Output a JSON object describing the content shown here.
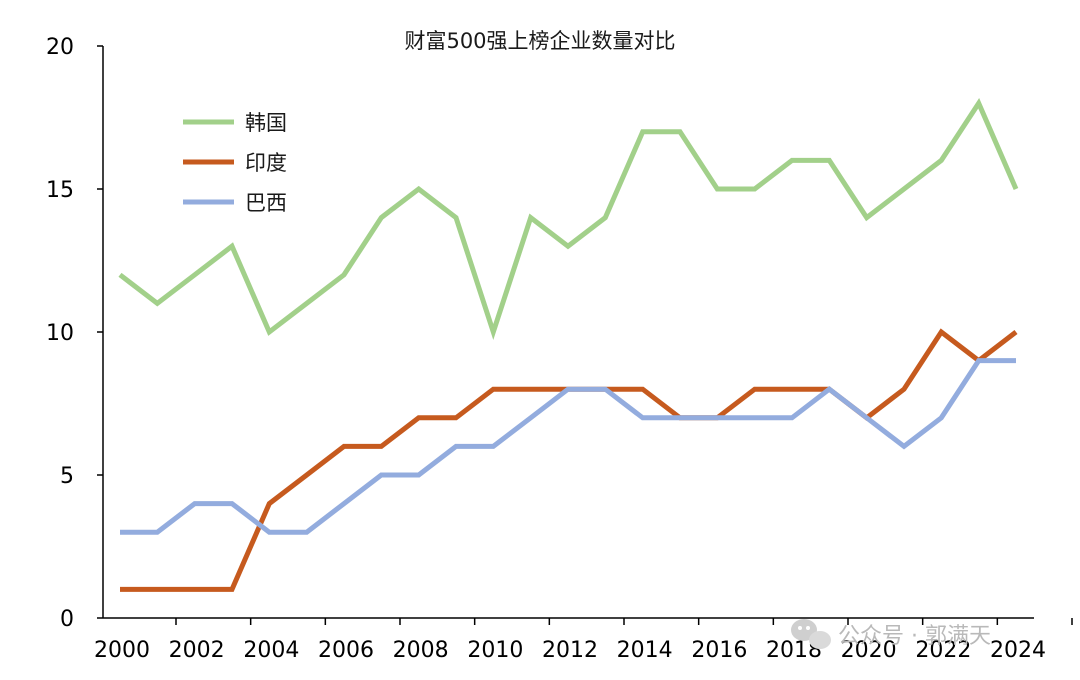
{
  "chart_data": {
    "type": "line",
    "title": "财富500强上榜企业数量对比",
    "xlabel": "",
    "ylabel": "",
    "x": [
      2000,
      2001,
      2002,
      2003,
      2004,
      2005,
      2006,
      2007,
      2008,
      2009,
      2010,
      2011,
      2012,
      2013,
      2014,
      2015,
      2016,
      2017,
      2018,
      2019,
      2020,
      2021,
      2022,
      2023,
      2024
    ],
    "x_tick_labels": [
      "2000",
      "2002",
      "2004",
      "2006",
      "2008",
      "2010",
      "2012",
      "2014",
      "2016",
      "2018",
      "2020",
      "2022",
      "2024"
    ],
    "ylim": [
      0,
      20
    ],
    "y_ticks": [
      0,
      5,
      10,
      15,
      20
    ],
    "grid": false,
    "legend_position": "top-left",
    "series": [
      {
        "name": "韩国",
        "color": "#a2d08a",
        "values": [
          12,
          11,
          12,
          13,
          10,
          11,
          12,
          14,
          15,
          14,
          10,
          14,
          13,
          14,
          17,
          17,
          15,
          15,
          16,
          16,
          14,
          15,
          16,
          18,
          15
        ]
      },
      {
        "name": "印度",
        "color": "#c65a1e",
        "values": [
          1,
          1,
          1,
          1,
          4,
          5,
          6,
          6,
          7,
          7,
          8,
          8,
          8,
          8,
          8,
          7,
          7,
          8,
          8,
          8,
          7,
          8,
          10,
          9,
          10
        ]
      },
      {
        "name": "巴西",
        "color": "#93acde",
        "values": [
          3,
          3,
          4,
          4,
          3,
          3,
          4,
          5,
          5,
          6,
          6,
          7,
          8,
          8,
          7,
          7,
          7,
          7,
          7,
          8,
          7,
          6,
          7,
          9,
          9
        ]
      }
    ]
  },
  "watermark": {
    "text": "公众号 · 郭满天",
    "icon": "wechat-icon"
  }
}
